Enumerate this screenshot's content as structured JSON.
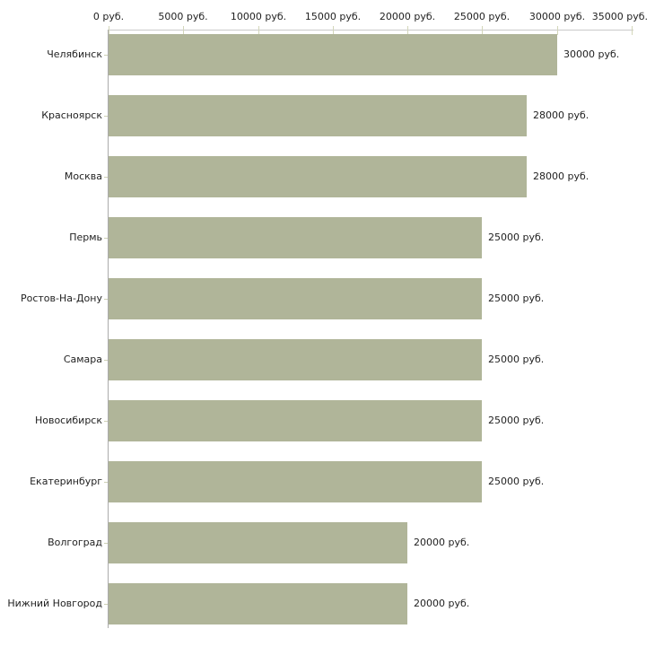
{
  "chart_data": {
    "type": "bar",
    "orientation": "horizontal",
    "title": "",
    "xlabel": "",
    "ylabel": "",
    "grid": false,
    "legend": false,
    "categories": [
      "Челябинск",
      "Красноярск",
      "Москва",
      "Пермь",
      "Ростов-На-Дону",
      "Самара",
      "Новосибирск",
      "Екатеринбург",
      "Волгоград",
      "Нижний Новгород"
    ],
    "values": [
      30000,
      28000,
      28000,
      25000,
      25000,
      25000,
      25000,
      25000,
      20000,
      20000
    ],
    "value_labels": [
      "30000 руб.",
      "28000 руб.",
      "28000 руб.",
      "25000 руб.",
      "25000 руб.",
      "25000 руб.",
      "25000 руб.",
      "25000 руб.",
      "20000 руб.",
      "20000 руб."
    ],
    "x_axis": {
      "position": "top",
      "min": 0,
      "max": 35000,
      "tick_step": 5000,
      "tick_values": [
        0,
        5000,
        10000,
        15000,
        20000,
        25000,
        30000,
        35000
      ],
      "tick_labels": [
        "0 руб.",
        "5000 руб.",
        "10000 руб.",
        "15000 руб.",
        "20000 руб.",
        "25000 руб.",
        "30000 руб.",
        "35000 руб."
      ]
    },
    "colors": {
      "bar": "#b0b599",
      "axis_top_line": "#c9c9c9",
      "axis_left_line": "#ababab",
      "tick_mark": "#d3d6ba",
      "category_tick": "#cdd0b5",
      "text": "#1f1f1f",
      "background": "#ffffff"
    }
  }
}
